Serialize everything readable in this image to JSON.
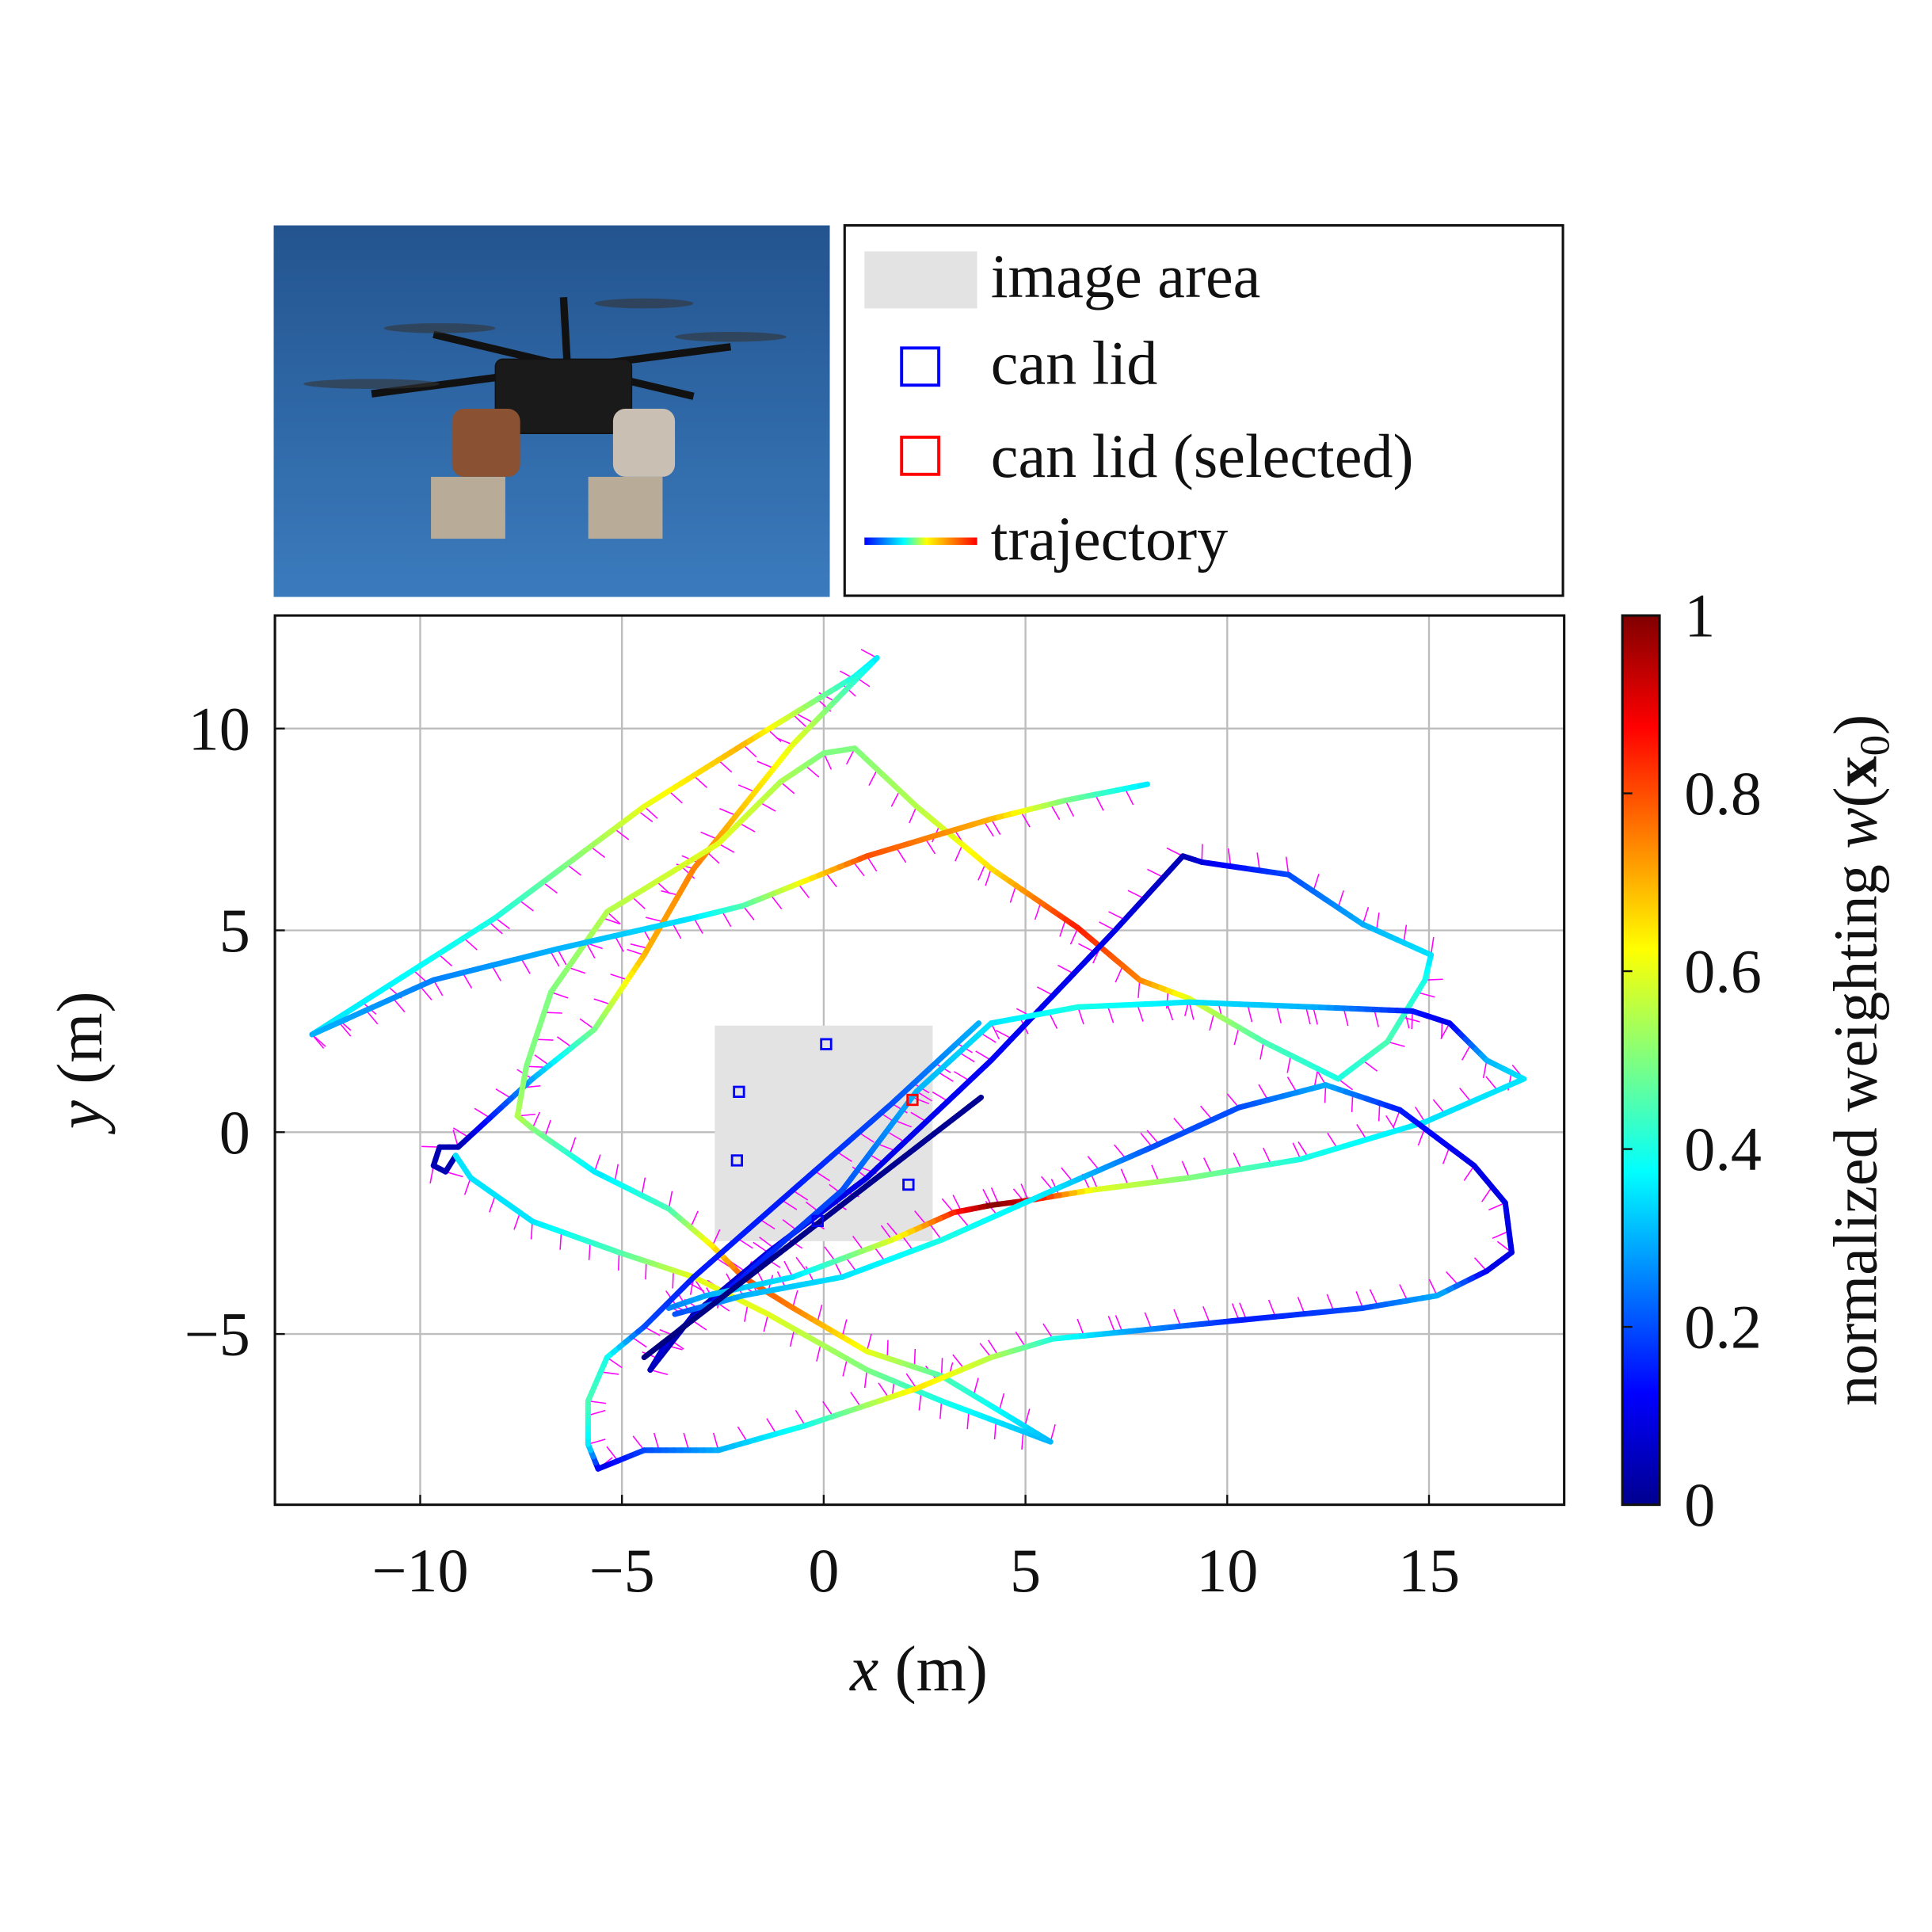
{
  "chart_data": {
    "type": "line",
    "xlabel": {
      "var": "x",
      "unit": " (m)"
    },
    "ylabel": {
      "var": "y",
      "unit": " (m)"
    },
    "xlim": [
      -13.6,
      18.35
    ],
    "ylim": [
      -9.23,
      12.8
    ],
    "grid": true,
    "xticks": [
      {
        "v": -10,
        "label": "−10"
      },
      {
        "v": -5,
        "label": "−5"
      },
      {
        "v": 0,
        "label": "0"
      },
      {
        "v": 5,
        "label": "5"
      },
      {
        "v": 10,
        "label": "10"
      },
      {
        "v": 15,
        "label": "15"
      }
    ],
    "yticks": [
      {
        "v": -5,
        "label": "−5"
      },
      {
        "v": 0,
        "label": "0"
      },
      {
        "v": 5,
        "label": "5"
      },
      {
        "v": 10,
        "label": "10"
      }
    ],
    "image_area": {
      "x": [
        -2.7,
        2.7
      ],
      "y": [
        -2.7,
        2.64
      ]
    },
    "can_lids": [
      [
        0.06,
        2.18
      ],
      [
        -2.1,
        1.0
      ],
      [
        -2.15,
        -0.7
      ],
      [
        2.1,
        -1.3
      ],
      [
        -0.15,
        -2.2
      ]
    ],
    "can_lid_selected": [
      [
        2.2,
        0.8
      ]
    ],
    "trajectories": [
      [
        [
          -12.68,
          2.42,
          0.35
        ],
        [
          -8.14,
          5.31,
          0.4
        ],
        [
          -4.45,
          8.07,
          0.6
        ],
        [
          -2.0,
          9.6,
          0.7
        ],
        [
          0.77,
          11.29,
          0.4
        ],
        [
          1.32,
          11.75,
          0.35
        ]
      ],
      [
        [
          1.32,
          11.75,
          0.35
        ],
        [
          -0.77,
          9.6,
          0.6
        ],
        [
          -3.22,
          6.53,
          0.75
        ],
        [
          -4.45,
          4.39,
          0.7
        ],
        [
          -5.68,
          2.55,
          0.5
        ],
        [
          -7.22,
          1.32,
          0.3
        ],
        [
          -9.06,
          -0.37,
          0.05
        ],
        [
          -9.52,
          -0.37,
          0.05
        ],
        [
          -9.67,
          -0.83,
          0.05
        ],
        [
          -9.37,
          -0.98,
          0.05
        ],
        [
          -9.12,
          -0.58,
          0.05
        ]
      ],
      [
        [
          -9.12,
          -0.58,
          0.35
        ],
        [
          -8.75,
          -1.13,
          0.35
        ],
        [
          -7.22,
          -2.21,
          0.35
        ],
        [
          -5.07,
          -2.98,
          0.45
        ],
        [
          -3.22,
          -3.59,
          0.6
        ],
        [
          -1.38,
          -4.51,
          0.6
        ],
        [
          1.07,
          -5.89,
          0.5
        ],
        [
          2.92,
          -6.66,
          0.4
        ],
        [
          5.62,
          -7.67,
          0.3
        ]
      ],
      [
        [
          5.62,
          -7.67,
          0.3
        ],
        [
          2.92,
          -6.04,
          0.45
        ],
        [
          1.07,
          -5.43,
          0.6
        ],
        [
          -0.77,
          -4.35,
          0.75
        ],
        [
          -2.0,
          -3.59,
          0.8
        ],
        [
          -2.76,
          -2.82,
          0.65
        ],
        [
          -3.84,
          -1.9,
          0.45
        ],
        [
          -5.68,
          -0.98,
          0.35
        ],
        [
          -7.22,
          0.09,
          0.5
        ],
        [
          -7.59,
          0.4,
          0.55
        ],
        [
          -7.37,
          1.63,
          0.5
        ],
        [
          -6.76,
          3.47,
          0.5
        ],
        [
          -5.37,
          5.46,
          0.55
        ],
        [
          -2.61,
          7.15,
          0.6
        ],
        [
          -1.07,
          8.68,
          0.55
        ],
        [
          0,
          9.39,
          0.5
        ],
        [
          0.77,
          9.51,
          0.5
        ],
        [
          2.3,
          8.07,
          0.55
        ],
        [
          4.15,
          6.53,
          0.65
        ],
        [
          6.3,
          5.06,
          0.85
        ],
        [
          7.83,
          3.77,
          0.75
        ],
        [
          9.06,
          3.31,
          0.6
        ],
        [
          10.9,
          2.24,
          0.45
        ],
        [
          12.75,
          1.32,
          0.4
        ],
        [
          13.97,
          2.24,
          0.45
        ],
        [
          14.9,
          3.77,
          0.4
        ],
        [
          15.05,
          4.39,
          0.35
        ],
        [
          13.36,
          5.15,
          0.3
        ],
        [
          11.52,
          6.38,
          0.2
        ],
        [
          9.37,
          6.69,
          0.1
        ],
        [
          8.9,
          6.84,
          0.05
        ],
        [
          7.22,
          5.0,
          0.1
        ],
        [
          4.15,
          1.78,
          0.12
        ],
        [
          1.07,
          -1.13,
          0.1
        ],
        [
          -1.38,
          -2.98,
          0.1
        ],
        [
          -3.22,
          -4.51,
          0.05
        ],
        [
          -4.3,
          -5.89,
          0.05
        ],
        [
          -3.84,
          -5.12,
          0.1
        ],
        [
          -2.0,
          -3.59,
          0.15
        ],
        [
          0.46,
          -1.44,
          0.2
        ],
        [
          2.3,
          1.01,
          0.3
        ],
        [
          4.15,
          2.7,
          0.35
        ],
        [
          6.3,
          3.1,
          0.4
        ],
        [
          9.06,
          3.22,
          0.35
        ],
        [
          12.13,
          3.1,
          0.3
        ],
        [
          14.59,
          3.0,
          0.15
        ],
        [
          15.51,
          2.7,
          0.1
        ],
        [
          16.43,
          1.78,
          0.3
        ],
        [
          17.35,
          1.32,
          0.35
        ],
        [
          14.9,
          0.25,
          0.35
        ],
        [
          11.82,
          -0.67,
          0.4
        ],
        [
          9.06,
          -1.13,
          0.5
        ],
        [
          6.6,
          -1.44,
          0.6
        ],
        [
          5.07,
          -1.69,
          0.9
        ],
        [
          4.15,
          -1.81,
          1.0
        ],
        [
          3.22,
          -1.99,
          0.85
        ],
        [
          1.69,
          -2.67,
          0.6
        ],
        [
          -0.77,
          -3.59,
          0.35
        ],
        [
          -2.92,
          -4.05,
          0.3
        ],
        [
          -3.84,
          -4.36,
          0.25
        ]
      ],
      [
        [
          12.44,
          1.17,
          0.3
        ],
        [
          10.29,
          0.61,
          0.2
        ],
        [
          8.14,
          -0.37,
          0.2
        ],
        [
          5.68,
          -1.44,
          0.35
        ],
        [
          2.92,
          -2.67,
          0.4
        ],
        [
          0.46,
          -3.59,
          0.35
        ],
        [
          -2.0,
          -4.05,
          0.3
        ],
        [
          -3.69,
          -4.51,
          0.2
        ]
      ],
      [
        [
          12.44,
          1.17,
          0.3
        ],
        [
          14.28,
          0.55,
          0.15
        ],
        [
          16.12,
          -0.83,
          0.1
        ],
        [
          16.89,
          -1.75,
          0.1
        ],
        [
          17.05,
          -2.98,
          0.1
        ],
        [
          16.43,
          -3.44,
          0.1
        ],
        [
          15.2,
          -4.05,
          0.3
        ],
        [
          13.36,
          -4.36,
          0.2
        ],
        [
          10.29,
          -4.66,
          0.15
        ],
        [
          7.22,
          -4.97,
          0.3
        ],
        [
          5.68,
          -5.12,
          0.4
        ],
        [
          4.15,
          -5.58,
          0.55
        ],
        [
          2.3,
          -6.35,
          0.65
        ],
        [
          -0.46,
          -7.27,
          0.4
        ],
        [
          -2.61,
          -7.88,
          0.3
        ],
        [
          -4.45,
          -7.88,
          0.2
        ],
        [
          -5.59,
          -8.34,
          0.1
        ],
        [
          -5.84,
          -7.73,
          0.35
        ],
        [
          -5.84,
          -6.66,
          0.45
        ],
        [
          -5.37,
          -5.58,
          0.4
        ],
        [
          -4.45,
          -4.82,
          0.2
        ],
        [
          -3.22,
          -3.59,
          0.15
        ],
        [
          -0.77,
          -1.44,
          0.15
        ],
        [
          1.69,
          0.71,
          0.2
        ],
        [
          3.84,
          2.7,
          0.3
        ]
      ],
      [
        [
          -4.45,
          -5.58,
          0.0
        ],
        [
          3.9,
          0.86,
          0.02
        ]
      ],
      [
        [
          -12.68,
          2.42,
          0.3
        ],
        [
          -9.67,
          3.77,
          0.25
        ],
        [
          -6.6,
          4.54,
          0.3
        ],
        [
          -3.22,
          5.31,
          0.35
        ],
        [
          -2.0,
          5.61,
          0.45
        ],
        [
          1.07,
          6.84,
          0.8
        ],
        [
          4.15,
          7.76,
          0.7
        ],
        [
          5.99,
          8.22,
          0.5
        ],
        [
          8.02,
          8.62,
          0.35
        ]
      ]
    ],
    "legend": {
      "placement": "top",
      "entries": [
        "image area",
        "can lid",
        "can lid (selected)",
        "trajectory"
      ]
    },
    "colorbar": {
      "label_text": "normalized weighting ",
      "label_func": "w",
      "label_arg": "x",
      "label_sub": "0",
      "range": [
        0,
        1
      ],
      "ticks": [
        {
          "v": 0,
          "label": "0"
        },
        {
          "v": 0.2,
          "label": "0.2"
        },
        {
          "v": 0.4,
          "label": "0.4"
        },
        {
          "v": 0.6,
          "label": "0.6"
        },
        {
          "v": 0.8,
          "label": "0.8"
        },
        {
          "v": 1,
          "label": "1"
        }
      ],
      "colormap": "jet"
    },
    "colors": {
      "image_area": "#e3e3e3",
      "can_lid": "#0000ff",
      "can_lid_selected": "#ff0000",
      "heading_ticks": "#ff00ff",
      "grid": "#bdbdbd",
      "sky": "#2f66a6"
    }
  }
}
